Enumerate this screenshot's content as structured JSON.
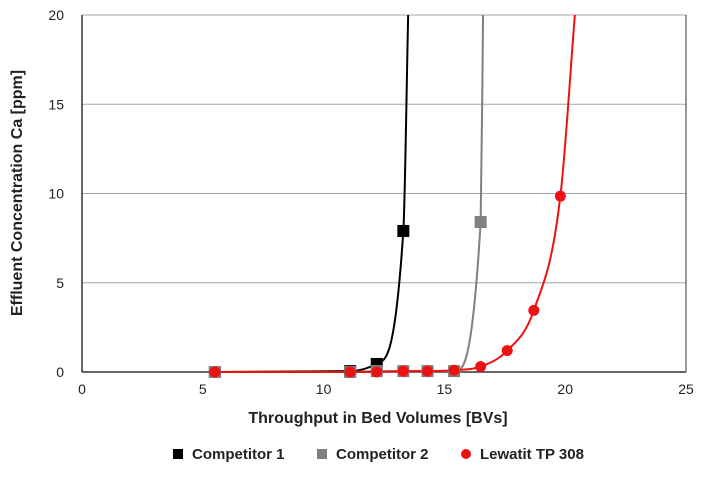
{
  "chart_data": {
    "type": "line",
    "title": "",
    "xlabel": "Throughput in Bed Volumes [BVs]",
    "ylabel": "Effluent Concentration Ca [ppm]",
    "xlim": [
      0,
      25
    ],
    "ylim": [
      0,
      20
    ],
    "xticks": [
      "0",
      "5",
      "10",
      "15",
      "20",
      "25"
    ],
    "yticks": [
      "0",
      "5",
      "10",
      "15",
      "20"
    ],
    "grid": "horizontal",
    "legend_position": "bottom",
    "series": [
      {
        "name": "Competitor 1",
        "color": "#000000",
        "marker": "square",
        "points": [
          [
            5.5,
            0.0
          ],
          [
            11.1,
            0.05
          ],
          [
            12.2,
            0.45
          ],
          [
            13.3,
            7.9
          ]
        ],
        "curve_extension": [
          [
            13.5,
            20.0
          ]
        ]
      },
      {
        "name": "Competitor 2",
        "color": "#808080",
        "marker": "square",
        "points": [
          [
            5.5,
            0.0
          ],
          [
            11.1,
            0.0
          ],
          [
            12.2,
            0.05
          ],
          [
            13.3,
            0.05
          ],
          [
            14.3,
            0.05
          ],
          [
            15.4,
            0.05
          ],
          [
            16.5,
            8.4
          ]
        ],
        "curve_extension": [
          [
            16.6,
            20.0
          ]
        ]
      },
      {
        "name": "Lewatit TP 308",
        "color": "#ee1111",
        "marker": "circle",
        "points": [
          [
            5.5,
            0.0
          ],
          [
            11.1,
            0.0
          ],
          [
            12.2,
            0.0
          ],
          [
            13.3,
            0.05
          ],
          [
            14.3,
            0.05
          ],
          [
            15.4,
            0.1
          ],
          [
            16.5,
            0.3
          ],
          [
            17.6,
            1.2
          ],
          [
            18.7,
            3.45
          ],
          [
            19.8,
            9.85
          ]
        ],
        "curve_extension": [
          [
            20.4,
            20.0
          ]
        ]
      }
    ]
  }
}
